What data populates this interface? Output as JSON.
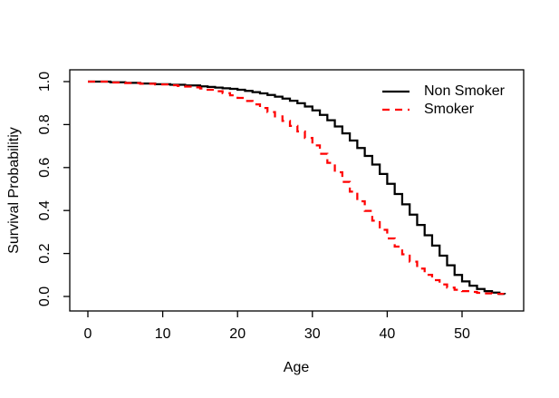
{
  "figure": {
    "background": "#ffffff",
    "text_color": "#000000"
  },
  "chart_data": {
    "type": "line",
    "subtype": "kaplan-meier-step-survival",
    "title": "",
    "xlabel": "Age",
    "ylabel": "Survival Probabilitiy",
    "xlim": [
      0,
      56
    ],
    "ylim": [
      0.0,
      1.0
    ],
    "grid": false,
    "x_ticks": [
      "0",
      "10",
      "20",
      "30",
      "40",
      "50"
    ],
    "y_ticks": [
      "0.0",
      "0.2",
      "0.4",
      "0.6",
      "0.8",
      "1.0"
    ],
    "legend": {
      "position": "top-right",
      "box": false,
      "entries": [
        {
          "label": "Non Smoker",
          "color": "#000000",
          "line_style": "solid"
        },
        {
          "label": "Smoker",
          "color": "#ff0000",
          "line_style": "dashed"
        }
      ]
    },
    "series": [
      {
        "name": "Non Smoker",
        "color": "#000000",
        "line_style": "solid",
        "points": [
          [
            0,
            1.0
          ],
          [
            3,
            0.997
          ],
          [
            5,
            0.994
          ],
          [
            7,
            0.991
          ],
          [
            9,
            0.988
          ],
          [
            11,
            0.985
          ],
          [
            13,
            0.982
          ],
          [
            15,
            0.978
          ],
          [
            16,
            0.975
          ],
          [
            17,
            0.972
          ],
          [
            18,
            0.969
          ],
          [
            19,
            0.966
          ],
          [
            20,
            0.962
          ],
          [
            21,
            0.957
          ],
          [
            22,
            0.951
          ],
          [
            23,
            0.945
          ],
          [
            24,
            0.938
          ],
          [
            25,
            0.93
          ],
          [
            26,
            0.921
          ],
          [
            27,
            0.911
          ],
          [
            28,
            0.899
          ],
          [
            29,
            0.884
          ],
          [
            30,
            0.866
          ],
          [
            31,
            0.845
          ],
          [
            32,
            0.82
          ],
          [
            33,
            0.791
          ],
          [
            34,
            0.759
          ],
          [
            35,
            0.726
          ],
          [
            36,
            0.691
          ],
          [
            37,
            0.654
          ],
          [
            38,
            0.614
          ],
          [
            39,
            0.57
          ],
          [
            40,
            0.524
          ],
          [
            41,
            0.477
          ],
          [
            42,
            0.429
          ],
          [
            43,
            0.381
          ],
          [
            44,
            0.333
          ],
          [
            45,
            0.285
          ],
          [
            46,
            0.237
          ],
          [
            47,
            0.19
          ],
          [
            48,
            0.145
          ],
          [
            49,
            0.1
          ],
          [
            50,
            0.07
          ],
          [
            51,
            0.05
          ],
          [
            52,
            0.035
          ],
          [
            53,
            0.025
          ],
          [
            54,
            0.018
          ],
          [
            55,
            0.012
          ],
          [
            55.7,
            0.01
          ]
        ]
      },
      {
        "name": "Smoker",
        "color": "#ff0000",
        "line_style": "dashed",
        "points": [
          [
            0,
            1.0
          ],
          [
            3,
            0.996
          ],
          [
            5,
            0.993
          ],
          [
            7,
            0.99
          ],
          [
            9,
            0.987
          ],
          [
            11,
            0.983
          ],
          [
            12,
            0.98
          ],
          [
            13,
            0.977
          ],
          [
            14,
            0.973
          ],
          [
            15,
            0.968
          ],
          [
            16,
            0.962
          ],
          [
            17,
            0.955
          ],
          [
            18,
            0.946
          ],
          [
            19,
            0.936
          ],
          [
            20,
            0.924
          ],
          [
            21,
            0.91
          ],
          [
            22,
            0.894
          ],
          [
            23,
            0.877
          ],
          [
            24,
            0.858
          ],
          [
            25,
            0.838
          ],
          [
            26,
            0.817
          ],
          [
            27,
            0.794
          ],
          [
            28,
            0.768
          ],
          [
            29,
            0.738
          ],
          [
            30,
            0.703
          ],
          [
            31,
            0.664
          ],
          [
            32,
            0.622
          ],
          [
            33,
            0.578
          ],
          [
            34,
            0.533
          ],
          [
            35,
            0.488
          ],
          [
            36,
            0.443
          ],
          [
            37,
            0.398
          ],
          [
            38,
            0.353
          ],
          [
            39,
            0.31
          ],
          [
            40,
            0.27
          ],
          [
            41,
            0.232
          ],
          [
            42,
            0.196
          ],
          [
            43,
            0.162
          ],
          [
            44,
            0.13
          ],
          [
            45,
            0.101
          ],
          [
            46,
            0.076
          ],
          [
            47,
            0.056
          ],
          [
            48,
            0.041
          ],
          [
            49,
            0.031
          ],
          [
            50,
            0.025
          ],
          [
            51,
            0.021
          ],
          [
            52,
            0.017
          ],
          [
            53,
            0.014
          ],
          [
            54,
            0.012
          ],
          [
            55.5,
            0.01
          ]
        ]
      }
    ]
  }
}
